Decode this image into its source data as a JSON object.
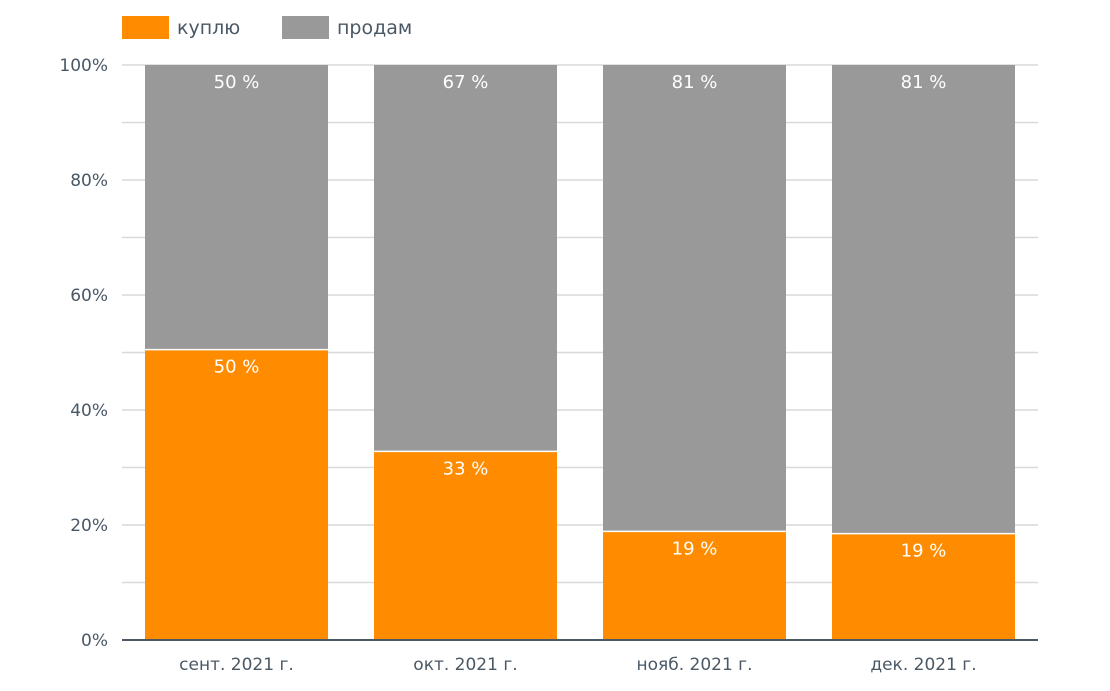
{
  "chart_data": {
    "type": "bar",
    "stacked": true,
    "normalized": true,
    "title": "",
    "xlabel": "",
    "ylabel": "",
    "ylim": [
      0,
      100
    ],
    "y_ticks": [
      "0%",
      "20%",
      "40%",
      "60%",
      "80%",
      "100%"
    ],
    "y_tick_values": [
      0,
      20,
      40,
      60,
      80,
      100
    ],
    "categories": [
      "сент. 2021 г.",
      "окт. 2021 г.",
      "нояб. 2021 г.",
      "дек. 2021 г."
    ],
    "series": [
      {
        "name": "куплю",
        "color": "#ff8c00",
        "values": [
          50.5,
          32.8,
          18.9,
          18.5
        ],
        "labels": [
          "50 %",
          "33 %",
          "19 %",
          "19 %"
        ]
      },
      {
        "name": "продам",
        "color": "#999999",
        "values": [
          49.5,
          67.2,
          81.1,
          81.5
        ],
        "labels": [
          "50 %",
          "67 %",
          "81 %",
          "81 %"
        ]
      }
    ],
    "legend_position": "top-left",
    "grid": true
  },
  "colors": {
    "grid": "#d9d9d9",
    "axis": "#4a5866",
    "text": "#4a5866",
    "data_label": "#ffffff"
  }
}
